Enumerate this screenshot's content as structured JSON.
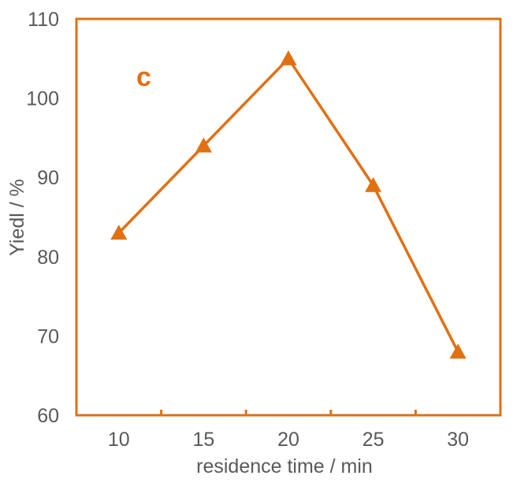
{
  "chart_data": {
    "type": "line",
    "panel_label": "c",
    "xlabel": "residence time / min",
    "ylabel": "Yiedl / %",
    "x": [
      10,
      15,
      20,
      25,
      30
    ],
    "x_ticks": [
      "10",
      "15",
      "20",
      "25",
      "30"
    ],
    "y_ticks": [
      "60",
      "70",
      "80",
      "90",
      "100",
      "110"
    ],
    "xlim": [
      7.5,
      32.5
    ],
    "ylim": [
      60,
      110
    ],
    "series": [
      {
        "values": [
          83,
          94,
          105,
          89,
          68
        ],
        "marker": "triangle"
      }
    ],
    "grid": false,
    "legend": "none",
    "color": "#E07012"
  }
}
